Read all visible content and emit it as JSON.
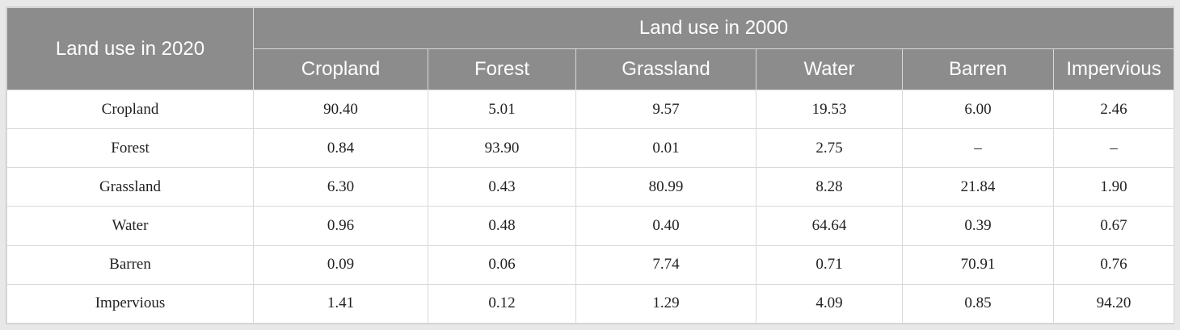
{
  "table": {
    "corner_label": "Land use in 2020",
    "group_label": "Land use in 2000",
    "columns": [
      "Cropland",
      "Forest",
      "Grassland",
      "Water",
      "Barren",
      "Impervious"
    ],
    "rows": [
      {
        "label": "Cropland",
        "values": [
          "90.40",
          "5.01",
          "9.57",
          "19.53",
          "6.00",
          "2.46"
        ]
      },
      {
        "label": "Forest",
        "values": [
          "0.84",
          "93.90",
          "0.01",
          "2.75",
          "–",
          "–"
        ]
      },
      {
        "label": "Grassland",
        "values": [
          "6.30",
          "0.43",
          "80.99",
          "8.28",
          "21.84",
          "1.90"
        ]
      },
      {
        "label": "Water",
        "values": [
          "0.96",
          "0.48",
          "0.40",
          "64.64",
          "0.39",
          "0.67"
        ]
      },
      {
        "label": "Barren",
        "values": [
          "0.09",
          "0.06",
          "7.74",
          "0.71",
          "70.91",
          "0.76"
        ]
      },
      {
        "label": "Impervious",
        "values": [
          "1.41",
          "0.12",
          "1.29",
          "4.09",
          "0.85",
          "94.20"
        ]
      }
    ]
  },
  "colors": {
    "header_bg": "#8c8c8c",
    "header_text": "#ffffff",
    "border": "#d9d9d9",
    "page_bg": "#e8e8e8"
  }
}
